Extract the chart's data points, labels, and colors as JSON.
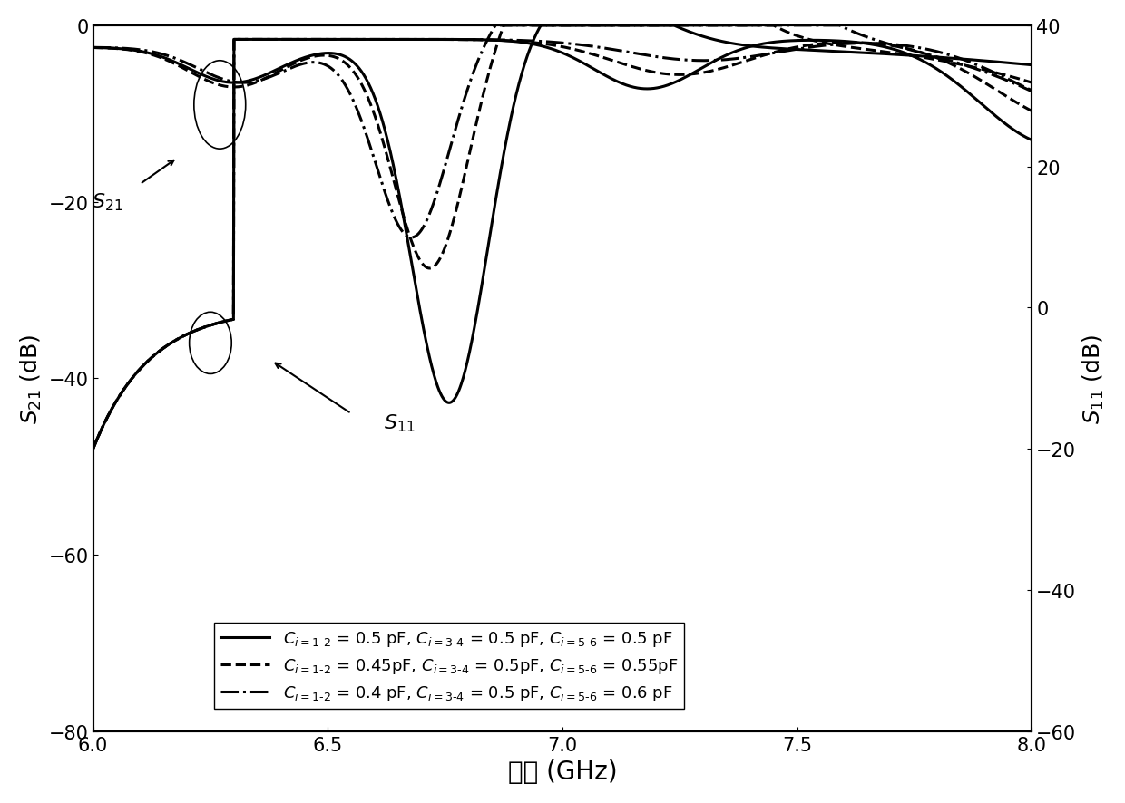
{
  "freq_range": [
    6.0,
    8.0
  ],
  "left_ylim": [
    -80,
    0
  ],
  "right_ylim": [
    -60,
    40
  ],
  "xlabel": "频率 (GHz)",
  "left_yticks": [
    -80,
    -60,
    -40,
    -20,
    0
  ],
  "right_yticks": [
    -60,
    -40,
    -20,
    0,
    20,
    40
  ],
  "xticks": [
    6.0,
    6.5,
    7.0,
    7.5,
    8.0
  ],
  "line_styles": [
    "-",
    "--",
    "-."
  ],
  "line_color": "black",
  "line_width": 2.2,
  "background": "white",
  "legend_labels": [
    "= 0.5 pF,  = 0.5 pF,  = 0.5 pF",
    "= 0.45pF,  = 0.5pF,  = 0.55pF",
    "= 0.4 pF,  = 0.5 pF,  = 0.6 pF"
  ]
}
